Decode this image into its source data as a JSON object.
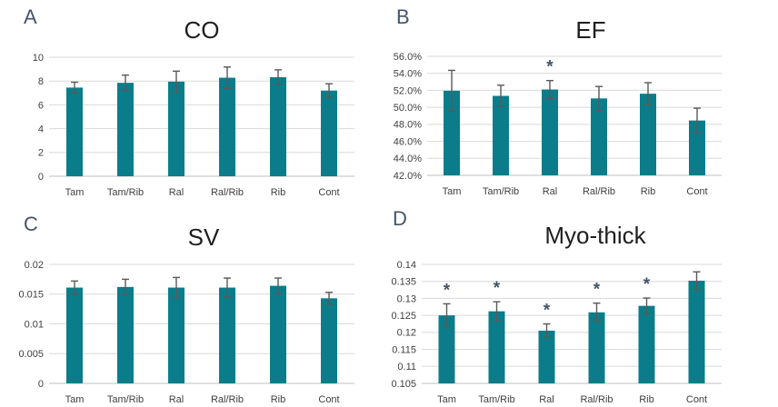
{
  "figure": {
    "background": "#ffffff",
    "bar_color": "#0b7d8a",
    "error_bar_color": "#595959",
    "gridline_color": "#d9d9d9",
    "axis_line_color": "#bfbfbf",
    "tick_label_color": "#404040",
    "title_color": "#1f1f1f",
    "panel_letter_color": "#44546a",
    "asterisk_color": "#44546a",
    "significance_marker": "*"
  },
  "chart_data": [
    {
      "panel_letter": "A",
      "type": "bar",
      "title": "CO",
      "xlabel": "",
      "ylabel": "",
      "grid": true,
      "legend": false,
      "categories": [
        "Tam",
        "Tam/Rib",
        "Ral",
        "Ral/Rib",
        "Rib",
        "Cont"
      ],
      "values": [
        7.45,
        7.85,
        7.95,
        8.28,
        8.32,
        7.2
      ],
      "errors": [
        0.45,
        0.65,
        0.88,
        0.9,
        0.62,
        0.57
      ],
      "significance": [
        false,
        false,
        false,
        false,
        false,
        false
      ],
      "ylim": [
        0,
        10
      ],
      "yticks": [
        0,
        2,
        4,
        6,
        8,
        10
      ],
      "ytick_labels": [
        "0",
        "2",
        "4",
        "6",
        "8",
        "10"
      ]
    },
    {
      "panel_letter": "B",
      "type": "bar",
      "title": "EF",
      "xlabel": "",
      "ylabel": "",
      "grid": true,
      "legend": false,
      "categories": [
        "Tam",
        "Tam/Rib",
        "Ral",
        "Ral/Rib",
        "Rib",
        "Cont"
      ],
      "values": [
        51.95,
        51.35,
        52.1,
        51.05,
        51.6,
        48.45
      ],
      "errors": [
        2.4,
        1.25,
        1.05,
        1.4,
        1.3,
        1.45
      ],
      "significance": [
        false,
        false,
        true,
        false,
        false,
        false
      ],
      "ylim": [
        42,
        56
      ],
      "yticks": [
        42,
        44,
        46,
        48,
        50,
        52,
        54,
        56
      ],
      "ytick_labels": [
        "42.0%",
        "44.0%",
        "46.0%",
        "48.0%",
        "50.0%",
        "52.0%",
        "54.0%",
        "56.0%"
      ]
    },
    {
      "panel_letter": "C",
      "type": "bar",
      "title": "SV",
      "xlabel": "",
      "ylabel": "",
      "grid": true,
      "legend": false,
      "categories": [
        "Tam",
        "Tam/Rib",
        "Ral",
        "Ral/Rib",
        "Rib",
        "Cont"
      ],
      "values": [
        0.0161,
        0.0162,
        0.0161,
        0.0161,
        0.0164,
        0.0143
      ],
      "errors": [
        0.0011,
        0.0013,
        0.0017,
        0.0016,
        0.0013,
        0.001
      ],
      "significance": [
        false,
        false,
        false,
        false,
        false,
        false
      ],
      "ylim": [
        0,
        0.02
      ],
      "yticks": [
        0,
        0.005,
        0.01,
        0.015,
        0.02
      ],
      "ytick_labels": [
        "0",
        "0.005",
        "0.01",
        "0.015",
        "0.02"
      ]
    },
    {
      "panel_letter": "D",
      "type": "bar",
      "title": "Myo-thick",
      "xlabel": "",
      "ylabel": "",
      "grid": true,
      "legend": false,
      "categories": [
        "Tam",
        "Tam/Rib",
        "Ral",
        "Ral/Rib",
        "Rib",
        "Cont"
      ],
      "values": [
        0.125,
        0.1262,
        0.1205,
        0.1259,
        0.1278,
        0.1352
      ],
      "errors": [
        0.0034,
        0.0028,
        0.002,
        0.0027,
        0.0023,
        0.0026
      ],
      "significance": [
        true,
        true,
        true,
        true,
        true,
        false
      ],
      "ylim": [
        0.105,
        0.14
      ],
      "yticks": [
        0.105,
        0.11,
        0.115,
        0.12,
        0.125,
        0.13,
        0.135,
        0.14
      ],
      "ytick_labels": [
        "0.105",
        "0.11",
        "0.115",
        "0.12",
        "0.125",
        "0.13",
        "0.135",
        "0.14"
      ]
    }
  ]
}
